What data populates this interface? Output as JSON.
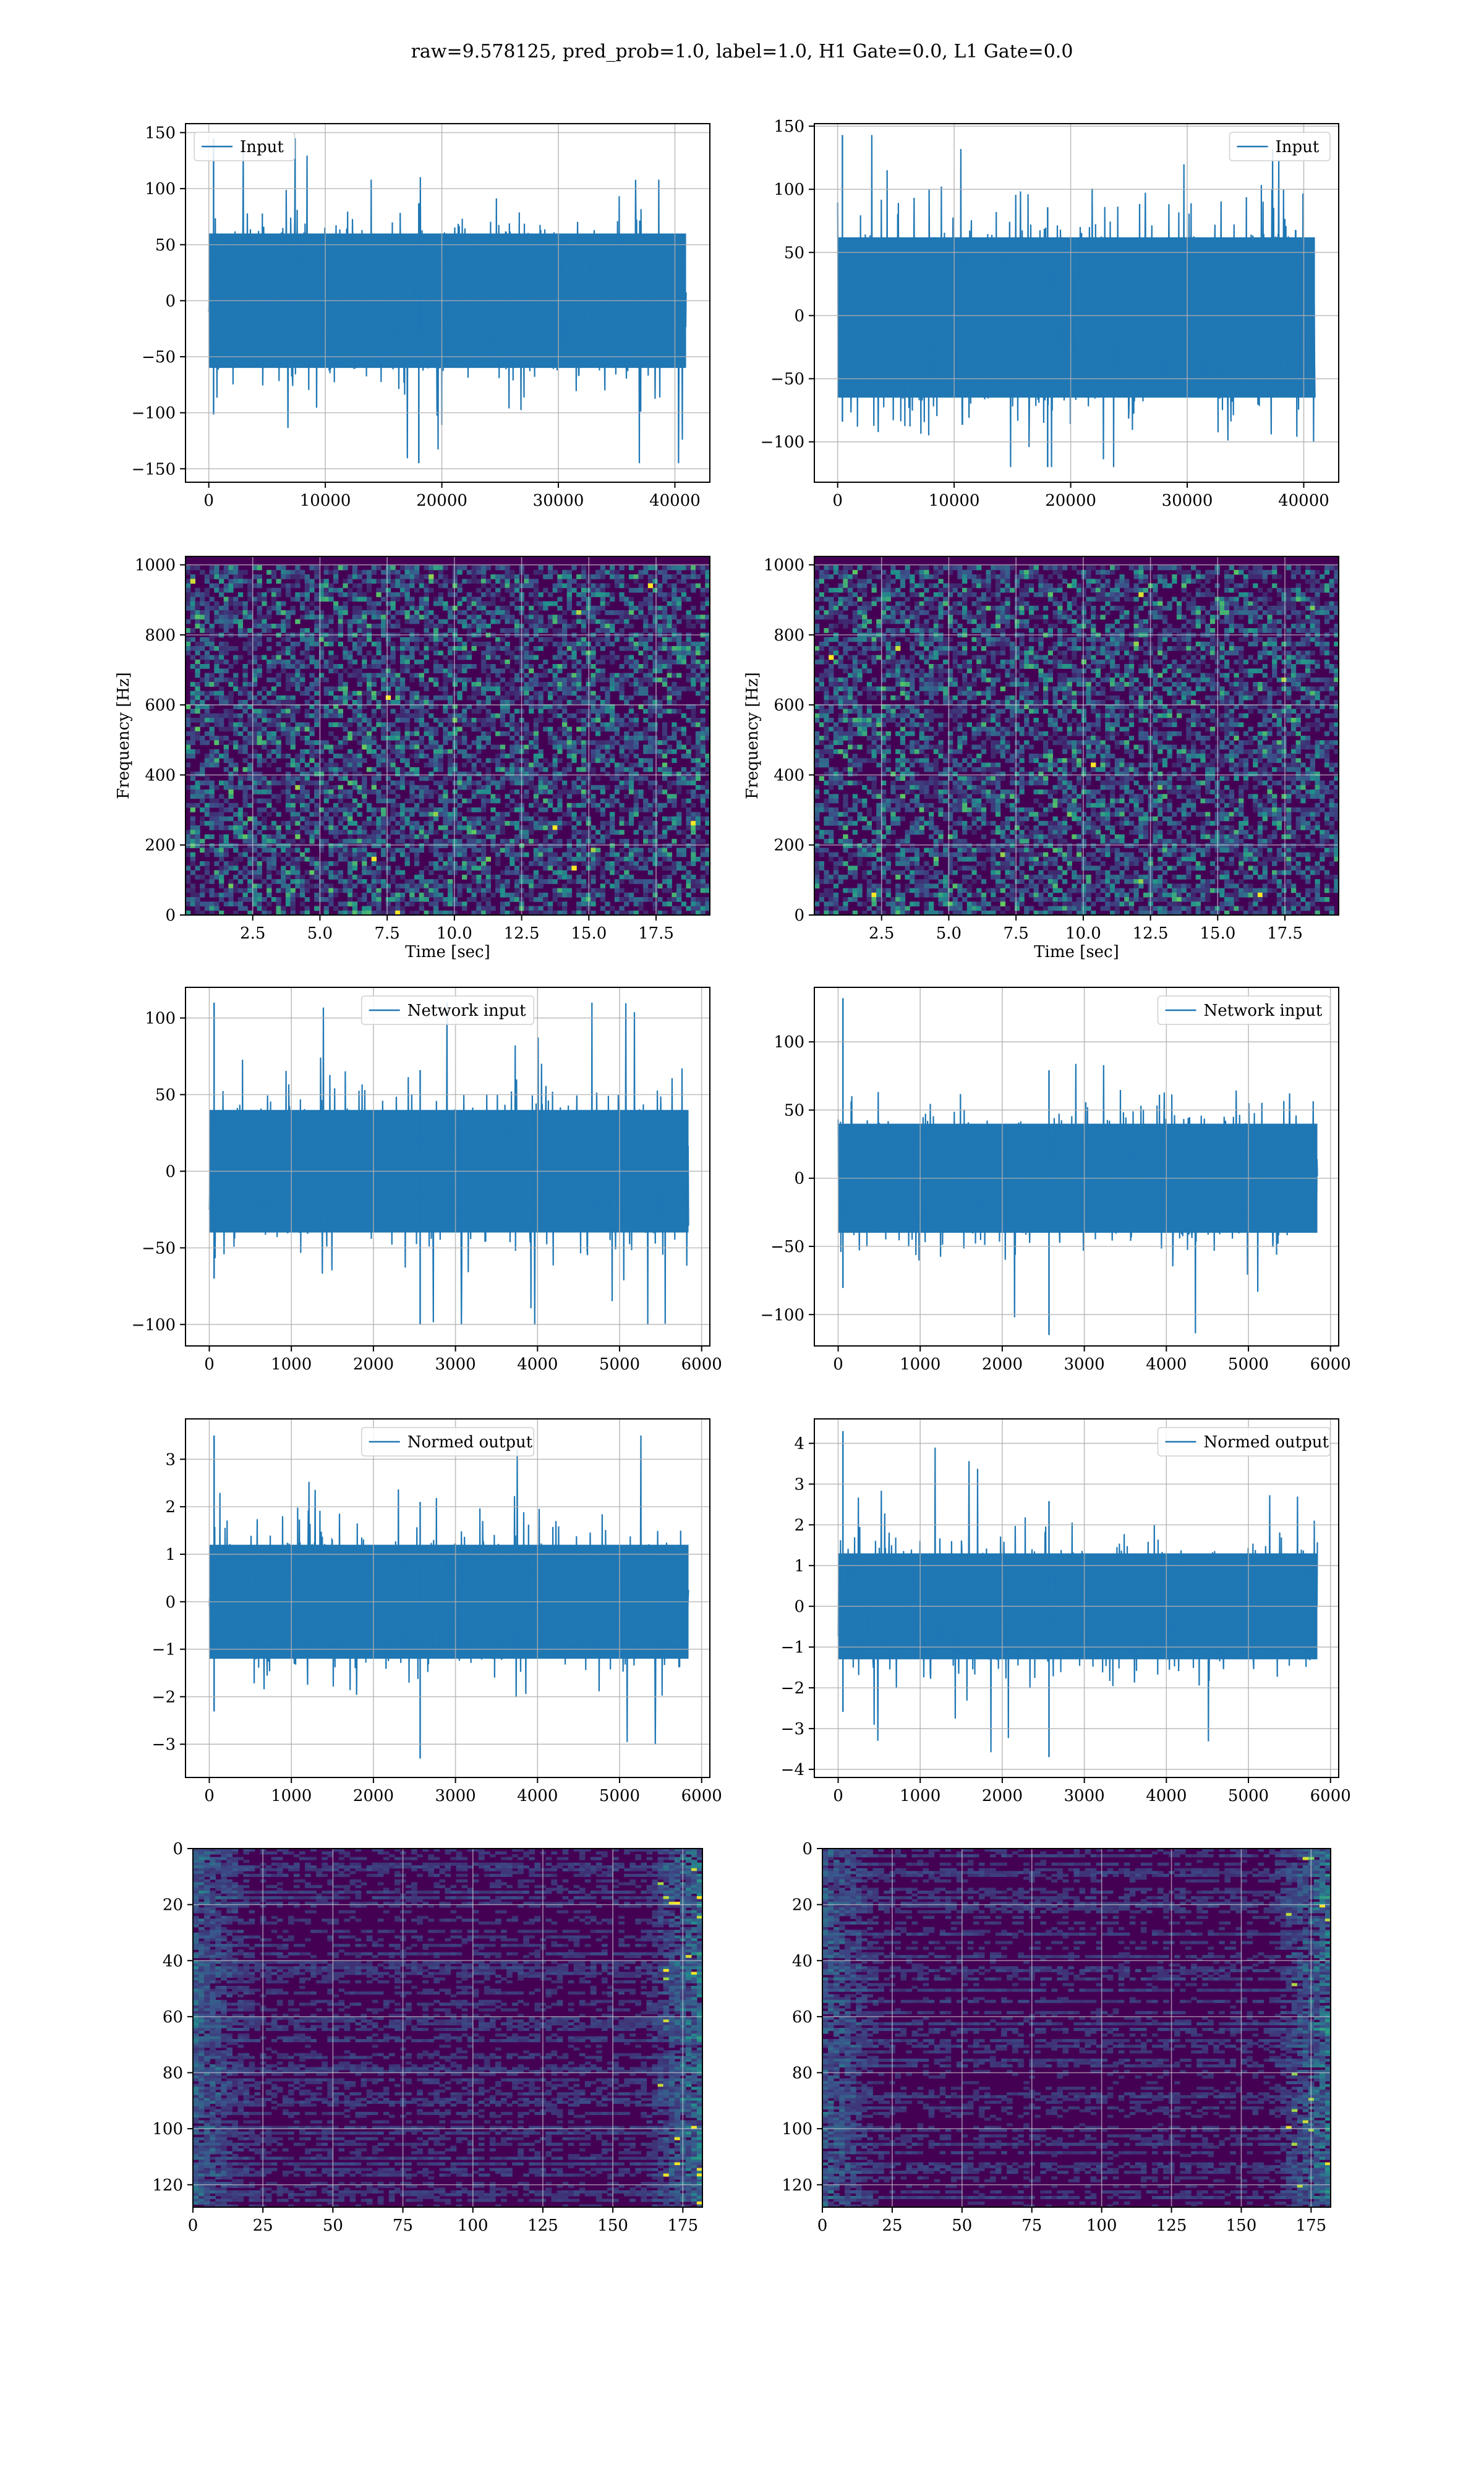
{
  "suptitle": "raw=9.578125, pred_prob=1.0, label=1.0, H1 Gate=0.0, L1 Gate=0.0",
  "colors": {
    "line": "#1f77b4",
    "grid": "#b0b0b0",
    "heat_low": "#440154",
    "heat_mid": "#21918c",
    "heat_high": "#fde725"
  },
  "chart_data": [
    {
      "id": "input-h1",
      "type": "line",
      "series": [
        {
          "name": "Input"
        }
      ],
      "legend": "upper left",
      "xlim": [
        -2000,
        43000
      ],
      "ylim": [
        -162,
        158
      ],
      "xticks": [
        0,
        10000,
        20000,
        30000,
        40000
      ],
      "xtick_labels": [
        "0",
        "10000",
        "20000",
        "30000",
        "40000"
      ],
      "yticks": [
        -150,
        -100,
        -50,
        0,
        50,
        100,
        150
      ],
      "ytick_labels": [
        "−150",
        "−100",
        "−50",
        "0",
        "50",
        "100",
        "150"
      ],
      "x_range": [
        0,
        40960
      ],
      "band": [
        -60,
        60
      ],
      "extremes": [
        -145,
        145
      ],
      "grid": true
    },
    {
      "id": "input-l1",
      "type": "line",
      "series": [
        {
          "name": "Input"
        }
      ],
      "legend": "upper right",
      "xlim": [
        -2000,
        43000
      ],
      "ylim": [
        -132,
        152
      ],
      "xticks": [
        0,
        10000,
        20000,
        30000,
        40000
      ],
      "xtick_labels": [
        "0",
        "10000",
        "20000",
        "30000",
        "40000"
      ],
      "yticks": [
        -100,
        -50,
        0,
        50,
        100,
        150
      ],
      "ytick_labels": [
        "−100",
        "−50",
        "0",
        "50",
        "100",
        "150"
      ],
      "x_range": [
        0,
        40960
      ],
      "band": [
        -65,
        62
      ],
      "extremes": [
        -120,
        143
      ],
      "grid": true
    },
    {
      "id": "spec-h1",
      "type": "heatmap",
      "xlabel": "Time [sec]",
      "ylabel": "Frequency [Hz]",
      "xlim": [
        0,
        19.5
      ],
      "ylim": [
        0,
        1024
      ],
      "xticks": [
        2.5,
        5.0,
        7.5,
        10.0,
        12.5,
        15.0,
        17.5
      ],
      "xtick_labels": [
        "2.5",
        "5.0",
        "7.5",
        "10.0",
        "12.5",
        "15.0",
        "17.5"
      ],
      "yticks": [
        0,
        200,
        400,
        600,
        800,
        1000
      ],
      "ytick_labels": [
        "0",
        "200",
        "400",
        "600",
        "800",
        "1000"
      ],
      "grid": true
    },
    {
      "id": "spec-l1",
      "type": "heatmap",
      "xlabel": "Time [sec]",
      "ylabel": "Frequency [Hz]",
      "xlim": [
        0,
        19.5
      ],
      "ylim": [
        0,
        1024
      ],
      "xticks": [
        2.5,
        5.0,
        7.5,
        10.0,
        12.5,
        15.0,
        17.5
      ],
      "xtick_labels": [
        "2.5",
        "5.0",
        "7.5",
        "10.0",
        "12.5",
        "15.0",
        "17.5"
      ],
      "yticks": [
        0,
        200,
        400,
        600,
        800,
        1000
      ],
      "ytick_labels": [
        "0",
        "200",
        "400",
        "600",
        "800",
        "1000"
      ],
      "grid": true
    },
    {
      "id": "netin-h1",
      "type": "line",
      "series": [
        {
          "name": "Network input"
        }
      ],
      "legend": "upper center",
      "xlim": [
        -290,
        6100
      ],
      "ylim": [
        -114,
        120
      ],
      "xticks": [
        0,
        1000,
        2000,
        3000,
        4000,
        5000,
        6000
      ],
      "xtick_labels": [
        "0",
        "1000",
        "2000",
        "3000",
        "4000",
        "5000",
        "6000"
      ],
      "yticks": [
        -100,
        -50,
        0,
        50,
        100
      ],
      "ytick_labels": [
        "−100",
        "−50",
        "0",
        "50",
        "100"
      ],
      "x_range": [
        0,
        5840
      ],
      "band": [
        -40,
        40
      ],
      "extremes": [
        -100,
        110
      ],
      "grid": true
    },
    {
      "id": "netin-l1",
      "type": "line",
      "series": [
        {
          "name": "Network input"
        }
      ],
      "legend": "upper right",
      "xlim": [
        -290,
        6100
      ],
      "ylim": [
        -123,
        140
      ],
      "xticks": [
        0,
        1000,
        2000,
        3000,
        4000,
        5000,
        6000
      ],
      "xtick_labels": [
        "0",
        "1000",
        "2000",
        "3000",
        "4000",
        "5000",
        "6000"
      ],
      "yticks": [
        -100,
        -50,
        0,
        50,
        100
      ],
      "ytick_labels": [
        "−100",
        "−50",
        "0",
        "50",
        "100"
      ],
      "x_range": [
        0,
        5840
      ],
      "band": [
        -40,
        40
      ],
      "extremes": [
        -115,
        132
      ],
      "grid": true
    },
    {
      "id": "norm-h1",
      "type": "line",
      "series": [
        {
          "name": "Normed output"
        }
      ],
      "legend": "upper center",
      "xlim": [
        -290,
        6100
      ],
      "ylim": [
        -3.7,
        3.85
      ],
      "xticks": [
        0,
        1000,
        2000,
        3000,
        4000,
        5000,
        6000
      ],
      "xtick_labels": [
        "0",
        "1000",
        "2000",
        "3000",
        "4000",
        "5000",
        "6000"
      ],
      "yticks": [
        -3,
        -2,
        -1,
        0,
        1,
        2,
        3
      ],
      "ytick_labels": [
        "−3",
        "−2",
        "−1",
        "0",
        "1",
        "2",
        "3"
      ],
      "x_range": [
        0,
        5840
      ],
      "band": [
        -1.2,
        1.2
      ],
      "extremes": [
        -3.3,
        3.5
      ],
      "grid": true
    },
    {
      "id": "norm-l1",
      "type": "line",
      "series": [
        {
          "name": "Normed output"
        }
      ],
      "legend": "upper right",
      "xlim": [
        -290,
        6100
      ],
      "ylim": [
        -4.2,
        4.6
      ],
      "xticks": [
        0,
        1000,
        2000,
        3000,
        4000,
        5000,
        6000
      ],
      "xtick_labels": [
        "0",
        "1000",
        "2000",
        "3000",
        "4000",
        "5000",
        "6000"
      ],
      "yticks": [
        -4,
        -3,
        -2,
        -1,
        0,
        1,
        2,
        3,
        4
      ],
      "ytick_labels": [
        "−4",
        "−3",
        "−2",
        "−1",
        "0",
        "1",
        "2",
        "3",
        "4"
      ],
      "x_range": [
        0,
        5840
      ],
      "band": [
        -1.3,
        1.3
      ],
      "extremes": [
        -3.7,
        4.3
      ],
      "grid": true
    },
    {
      "id": "feat-h1",
      "type": "heatmap",
      "xlim": [
        0,
        182
      ],
      "ylim": [
        128,
        0
      ],
      "xticks": [
        0,
        25,
        50,
        75,
        100,
        125,
        150,
        175
      ],
      "xtick_labels": [
        "0",
        "25",
        "50",
        "75",
        "100",
        "125",
        "150",
        "175"
      ],
      "yticks": [
        0,
        20,
        40,
        60,
        80,
        100,
        120
      ],
      "ytick_labels": [
        "0",
        "20",
        "40",
        "60",
        "80",
        "100",
        "120"
      ],
      "grid": true
    },
    {
      "id": "feat-l1",
      "type": "heatmap",
      "xlim": [
        0,
        182
      ],
      "ylim": [
        128,
        0
      ],
      "xticks": [
        0,
        25,
        50,
        75,
        100,
        125,
        150,
        175
      ],
      "xtick_labels": [
        "0",
        "25",
        "50",
        "75",
        "100",
        "125",
        "150",
        "175"
      ],
      "yticks": [
        0,
        20,
        40,
        60,
        80,
        100,
        120
      ],
      "ytick_labels": [
        "0",
        "20",
        "40",
        "60",
        "80",
        "100",
        "120"
      ],
      "grid": true
    }
  ]
}
